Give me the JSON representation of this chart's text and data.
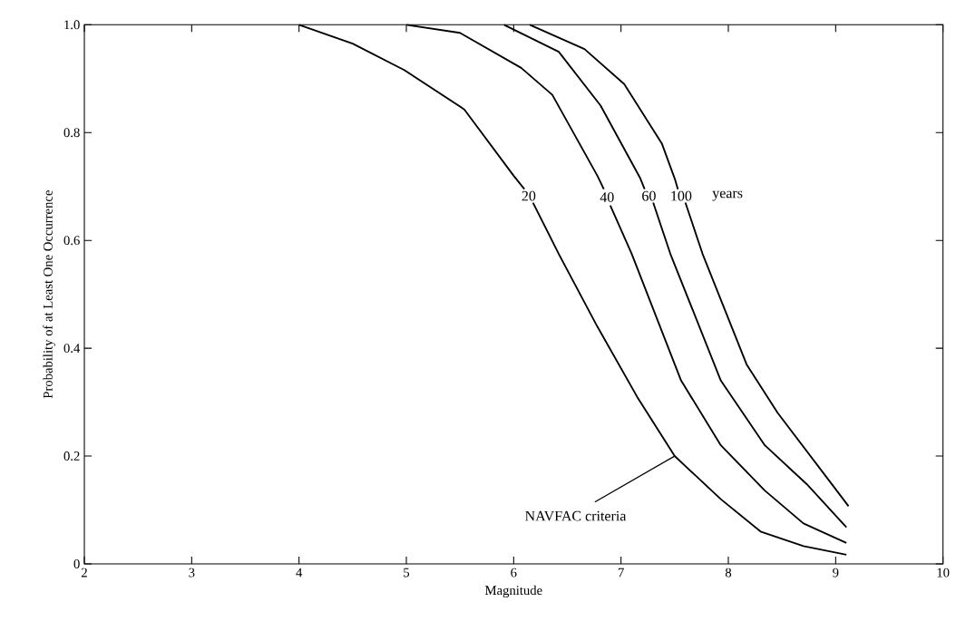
{
  "chart_data": {
    "type": "line",
    "xlabel": "Magnitude",
    "ylabel": "Probability of at Least One Occurrence",
    "xlim": [
      2,
      10
    ],
    "ylim": [
      0,
      1.0
    ],
    "xticks": [
      2,
      3,
      4,
      5,
      6,
      7,
      8,
      9,
      10
    ],
    "yticks": [
      0,
      0.2,
      0.4,
      0.6,
      0.8,
      {
        "value": 1.0,
        "label": "1.0"
      }
    ],
    "grid": false,
    "legend": false,
    "marker": "none",
    "line_style": "solid",
    "series": [
      {
        "name": "20",
        "color": "#000000",
        "x": [
          4.0,
          4.5,
          4.98,
          5.54,
          6.0,
          6.1,
          6.14,
          6.18,
          6.42,
          6.78,
          7.15,
          7.5,
          7.93,
          8.3,
          8.7,
          9.1
        ],
        "values": [
          1.0,
          0.965,
          0.916,
          0.843,
          0.72,
          0.695,
          null,
          0.67,
          0.575,
          0.44,
          0.31,
          0.2,
          0.12,
          0.06,
          0.033,
          0.017
        ]
      },
      {
        "name": "40",
        "color": "#000000",
        "x": [
          5.0,
          5.5,
          6.07,
          6.36,
          6.78,
          6.84,
          6.87,
          6.9,
          7.1,
          7.56,
          7.93,
          8.34,
          8.7,
          9.1
        ],
        "values": [
          1.0,
          0.985,
          0.92,
          0.87,
          0.72,
          0.695,
          null,
          0.665,
          0.575,
          0.34,
          0.22,
          0.136,
          0.075,
          0.039
        ]
      },
      {
        "name": "60",
        "color": "#000000",
        "x": [
          5.91,
          6.42,
          6.81,
          7.18,
          7.22,
          7.26,
          7.3,
          7.46,
          7.93,
          8.34,
          8.73,
          9.1
        ],
        "values": [
          1.0,
          0.95,
          0.85,
          0.715,
          0.695,
          null,
          0.67,
          0.575,
          0.34,
          0.22,
          0.148,
          0.068
        ]
      },
      {
        "name": "100",
        "color": "#000000",
        "x": [
          6.15,
          6.66,
          7.03,
          7.38,
          7.5,
          7.53,
          7.56,
          7.6,
          7.76,
          8.17,
          8.46,
          8.83,
          9.12
        ],
        "values": [
          1.0,
          0.955,
          0.89,
          0.78,
          0.715,
          0.695,
          null,
          0.67,
          0.575,
          0.37,
          0.28,
          0.183,
          0.107
        ]
      }
    ],
    "annotations": [
      "years",
      {
        "text": "NAVFAC criteria",
        "x": 7.5,
        "y": 0.2
      }
    ]
  }
}
